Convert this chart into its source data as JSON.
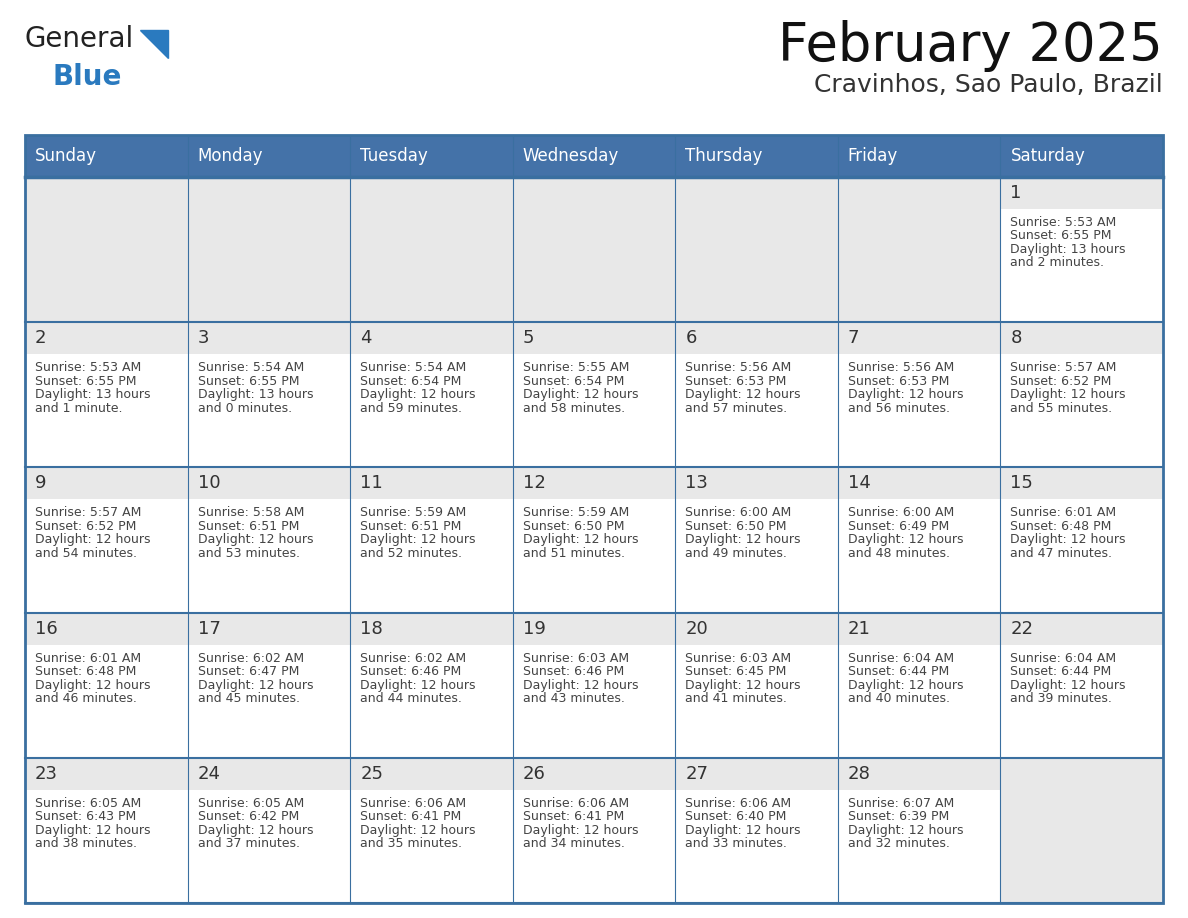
{
  "title": "February 2025",
  "subtitle": "Cravinhos, Sao Paulo, Brazil",
  "header_color": "#4472a8",
  "header_text_color": "#ffffff",
  "cell_bg_color": "#ffffff",
  "cell_num_bg_color": "#e8e8e8",
  "border_color": "#3a6fa0",
  "day_number_color": "#333333",
  "text_color": "#444444",
  "days_of_week": [
    "Sunday",
    "Monday",
    "Tuesday",
    "Wednesday",
    "Thursday",
    "Friday",
    "Saturday"
  ],
  "weeks": [
    [
      null,
      null,
      null,
      null,
      null,
      null,
      1
    ],
    [
      2,
      3,
      4,
      5,
      6,
      7,
      8
    ],
    [
      9,
      10,
      11,
      12,
      13,
      14,
      15
    ],
    [
      16,
      17,
      18,
      19,
      20,
      21,
      22
    ],
    [
      23,
      24,
      25,
      26,
      27,
      28,
      null
    ]
  ],
  "cell_data": {
    "1": {
      "sunrise": "5:53 AM",
      "sunset": "6:55 PM",
      "daylight": "13 hours and 2 minutes."
    },
    "2": {
      "sunrise": "5:53 AM",
      "sunset": "6:55 PM",
      "daylight": "13 hours and 1 minute."
    },
    "3": {
      "sunrise": "5:54 AM",
      "sunset": "6:55 PM",
      "daylight": "13 hours and 0 minutes."
    },
    "4": {
      "sunrise": "5:54 AM",
      "sunset": "6:54 PM",
      "daylight": "12 hours and 59 minutes."
    },
    "5": {
      "sunrise": "5:55 AM",
      "sunset": "6:54 PM",
      "daylight": "12 hours and 58 minutes."
    },
    "6": {
      "sunrise": "5:56 AM",
      "sunset": "6:53 PM",
      "daylight": "12 hours and 57 minutes."
    },
    "7": {
      "sunrise": "5:56 AM",
      "sunset": "6:53 PM",
      "daylight": "12 hours and 56 minutes."
    },
    "8": {
      "sunrise": "5:57 AM",
      "sunset": "6:52 PM",
      "daylight": "12 hours and 55 minutes."
    },
    "9": {
      "sunrise": "5:57 AM",
      "sunset": "6:52 PM",
      "daylight": "12 hours and 54 minutes."
    },
    "10": {
      "sunrise": "5:58 AM",
      "sunset": "6:51 PM",
      "daylight": "12 hours and 53 minutes."
    },
    "11": {
      "sunrise": "5:59 AM",
      "sunset": "6:51 PM",
      "daylight": "12 hours and 52 minutes."
    },
    "12": {
      "sunrise": "5:59 AM",
      "sunset": "6:50 PM",
      "daylight": "12 hours and 51 minutes."
    },
    "13": {
      "sunrise": "6:00 AM",
      "sunset": "6:50 PM",
      "daylight": "12 hours and 49 minutes."
    },
    "14": {
      "sunrise": "6:00 AM",
      "sunset": "6:49 PM",
      "daylight": "12 hours and 48 minutes."
    },
    "15": {
      "sunrise": "6:01 AM",
      "sunset": "6:48 PM",
      "daylight": "12 hours and 47 minutes."
    },
    "16": {
      "sunrise": "6:01 AM",
      "sunset": "6:48 PM",
      "daylight": "12 hours and 46 minutes."
    },
    "17": {
      "sunrise": "6:02 AM",
      "sunset": "6:47 PM",
      "daylight": "12 hours and 45 minutes."
    },
    "18": {
      "sunrise": "6:02 AM",
      "sunset": "6:46 PM",
      "daylight": "12 hours and 44 minutes."
    },
    "19": {
      "sunrise": "6:03 AM",
      "sunset": "6:46 PM",
      "daylight": "12 hours and 43 minutes."
    },
    "20": {
      "sunrise": "6:03 AM",
      "sunset": "6:45 PM",
      "daylight": "12 hours and 41 minutes."
    },
    "21": {
      "sunrise": "6:04 AM",
      "sunset": "6:44 PM",
      "daylight": "12 hours and 40 minutes."
    },
    "22": {
      "sunrise": "6:04 AM",
      "sunset": "6:44 PM",
      "daylight": "12 hours and 39 minutes."
    },
    "23": {
      "sunrise": "6:05 AM",
      "sunset": "6:43 PM",
      "daylight": "12 hours and 38 minutes."
    },
    "24": {
      "sunrise": "6:05 AM",
      "sunset": "6:42 PM",
      "daylight": "12 hours and 37 minutes."
    },
    "25": {
      "sunrise": "6:06 AM",
      "sunset": "6:41 PM",
      "daylight": "12 hours and 35 minutes."
    },
    "26": {
      "sunrise": "6:06 AM",
      "sunset": "6:41 PM",
      "daylight": "12 hours and 34 minutes."
    },
    "27": {
      "sunrise": "6:06 AM",
      "sunset": "6:40 PM",
      "daylight": "12 hours and 33 minutes."
    },
    "28": {
      "sunrise": "6:07 AM",
      "sunset": "6:39 PM",
      "daylight": "12 hours and 32 minutes."
    }
  },
  "logo_text_general": "General",
  "logo_text_blue": "Blue",
  "logo_color_general": "#222222",
  "logo_color_blue": "#2a7abf",
  "logo_triangle_color": "#2a7abf",
  "title_fontsize": 38,
  "subtitle_fontsize": 18,
  "dow_fontsize": 12,
  "day_num_fontsize": 13,
  "cell_text_fontsize": 9
}
